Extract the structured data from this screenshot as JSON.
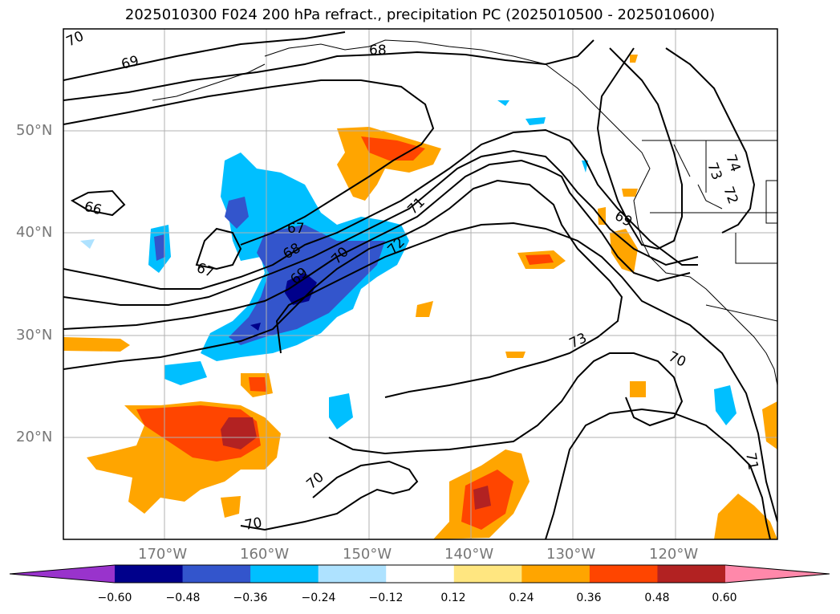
{
  "title": "2025010300 F024 200 hPa refract., precipitation PC (2025010500 - 2025010600)",
  "map": {
    "lat_labels": [
      "50°N",
      "40°N",
      "30°N",
      "20°N"
    ],
    "lon_labels": [
      "170°W",
      "160°W",
      "150°W",
      "140°W",
      "130°W",
      "120°W"
    ],
    "contour_labels": [
      "70",
      "69",
      "68",
      "66",
      "67",
      "67",
      "68",
      "69",
      "70",
      "71",
      "72",
      "73",
      "73",
      "74",
      "72",
      "69",
      "70",
      "70",
      "70",
      "71"
    ]
  },
  "colorbar": {
    "ticks": [
      "−0.60",
      "−0.48",
      "−0.36",
      "−0.24",
      "−0.12",
      "0.12",
      "0.24",
      "0.36",
      "0.48",
      "0.60"
    ],
    "colors": [
      "#9933cc",
      "#00008b",
      "#3355cc",
      "#00bfff",
      "#aee2ff",
      "#ffffff",
      "#ffe680",
      "#ffa500",
      "#ff4500",
      "#b22222",
      "#ff88aa"
    ]
  }
}
